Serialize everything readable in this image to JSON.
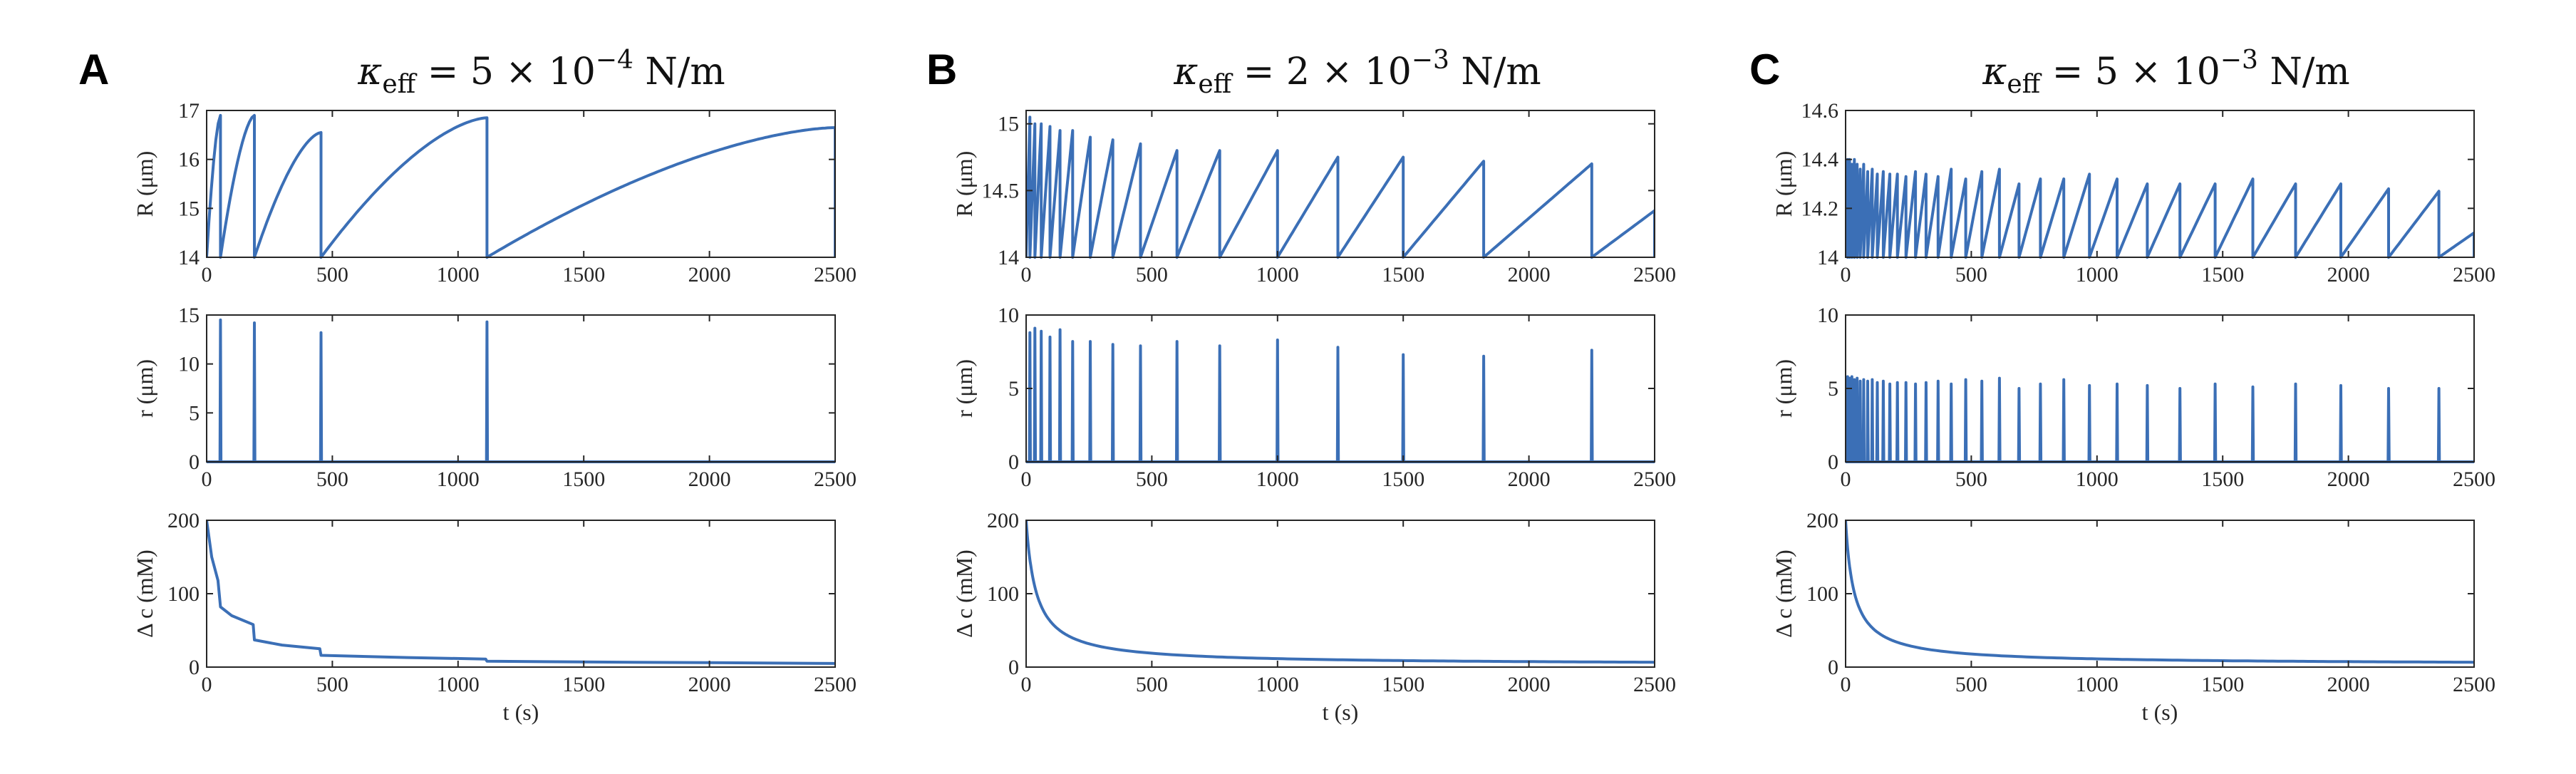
{
  "figure": {
    "panels": [
      {
        "letter": "A",
        "title_prefix": "κ",
        "title_sub": "eff",
        "title_value": " = 5 × 10",
        "title_exp": "−4",
        "title_unit": " N/m"
      },
      {
        "letter": "B",
        "title_prefix": "κ",
        "title_sub": "eff",
        "title_value": " = 2 × 10",
        "title_exp": "−3",
        "title_unit": " N/m"
      },
      {
        "letter": "C",
        "title_prefix": "κ",
        "title_sub": "eff",
        "title_value": " = 5 × 10",
        "title_exp": "−3",
        "title_unit": " N/m"
      }
    ],
    "series_color": "#3b6fb6"
  },
  "chart_data": [
    {
      "panel": "A",
      "row": "R",
      "type": "line",
      "xlabel": "",
      "ylabel": "R (μm)",
      "xlim": [
        0,
        2500
      ],
      "ylim": [
        14,
        17
      ],
      "xticks": [
        0,
        500,
        1000,
        1500,
        2000,
        2500
      ],
      "yticks": [
        14,
        15,
        16,
        17
      ],
      "sawtooth": {
        "base": 14,
        "cycles": [
          [
            0,
            55,
            16.9
          ],
          [
            55,
            190,
            16.9
          ],
          [
            190,
            455,
            16.55
          ],
          [
            455,
            1115,
            16.85
          ],
          [
            1115,
            2500,
            16.65
          ]
        ],
        "shape": 0.6
      }
    },
    {
      "panel": "A",
      "row": "r",
      "type": "line",
      "xlabel": "",
      "ylabel": "r (μm)",
      "xlim": [
        0,
        2500
      ],
      "ylim": [
        0,
        15
      ],
      "xticks": [
        0,
        500,
        1000,
        1500,
        2000,
        2500
      ],
      "yticks": [
        0,
        5,
        10,
        15
      ],
      "spikes": {
        "times": [
          55,
          190,
          455,
          1115
        ],
        "heights": [
          14.5,
          14.2,
          13.2,
          14.3
        ]
      }
    },
    {
      "panel": "A",
      "row": "dc",
      "type": "line",
      "xlabel": "t (s)",
      "ylabel": "Δ c (mM)",
      "xlim": [
        0,
        2500
      ],
      "ylim": [
        0,
        200
      ],
      "xticks": [
        0,
        500,
        1000,
        1500,
        2000,
        2500
      ],
      "yticks": [
        0,
        100,
        200
      ],
      "steps": [
        [
          0,
          200
        ],
        [
          20,
          150
        ],
        [
          45,
          118
        ],
        [
          55,
          82
        ],
        [
          100,
          70
        ],
        [
          185,
          58
        ],
        [
          190,
          37
        ],
        [
          300,
          30
        ],
        [
          450,
          25
        ],
        [
          455,
          16
        ],
        [
          800,
          13
        ],
        [
          1110,
          11
        ],
        [
          1115,
          8
        ],
        [
          1500,
          7
        ],
        [
          2000,
          6
        ],
        [
          2500,
          5
        ]
      ]
    },
    {
      "panel": "B",
      "row": "R",
      "type": "line",
      "xlabel": "",
      "ylabel": "R (μm)",
      "xlim": [
        0,
        2500
      ],
      "ylim": [
        14,
        15.1
      ],
      "xticks": [
        0,
        500,
        1000,
        1500,
        2000,
        2500
      ],
      "yticks": [
        14,
        14.5,
        15
      ],
      "sawtooth": {
        "base": 14,
        "cycles": [
          [
            0,
            15,
            15.05
          ],
          [
            15,
            35,
            15.0
          ],
          [
            35,
            60,
            15.0
          ],
          [
            60,
            95,
            14.98
          ],
          [
            95,
            135,
            14.95
          ],
          [
            135,
            185,
            14.95
          ],
          [
            185,
            255,
            14.9
          ],
          [
            255,
            345,
            14.88
          ],
          [
            345,
            455,
            14.85
          ],
          [
            455,
            600,
            14.8
          ],
          [
            600,
            770,
            14.8
          ],
          [
            770,
            1000,
            14.8
          ],
          [
            1000,
            1240,
            14.75
          ],
          [
            1240,
            1500,
            14.75
          ],
          [
            1500,
            1820,
            14.72
          ],
          [
            1820,
            2250,
            14.7
          ],
          [
            2250,
            2500,
            14.35
          ]
        ],
        "shape": 0.9
      }
    },
    {
      "panel": "B",
      "row": "r",
      "type": "line",
      "xlabel": "",
      "ylabel": "r (μm)",
      "xlim": [
        0,
        2500
      ],
      "ylim": [
        0,
        10
      ],
      "xticks": [
        0,
        500,
        1000,
        1500,
        2000,
        2500
      ],
      "yticks": [
        0,
        5,
        10
      ],
      "spikes": {
        "times": [
          15,
          35,
          60,
          95,
          135,
          185,
          255,
          345,
          455,
          600,
          770,
          1000,
          1240,
          1500,
          1820,
          2250
        ],
        "heights": [
          8.8,
          9.1,
          8.9,
          8.5,
          9.0,
          8.2,
          8.2,
          8.0,
          7.9,
          8.2,
          7.9,
          8.3,
          7.8,
          7.3,
          7.2,
          7.6
        ]
      }
    },
    {
      "panel": "B",
      "row": "dc",
      "type": "line",
      "xlabel": "t (s)",
      "ylabel": "Δ c (mM)",
      "xlim": [
        0,
        2500
      ],
      "ylim": [
        0,
        200
      ],
      "xticks": [
        0,
        500,
        1000,
        1500,
        2000,
        2500
      ],
      "yticks": [
        0,
        100,
        200
      ],
      "decay": {
        "c0": 200,
        "tau": 38,
        "pow": 0.95,
        "floor": 3
      }
    },
    {
      "panel": "C",
      "row": "R",
      "type": "line",
      "xlabel": "",
      "ylabel": "R (μm)",
      "xlim": [
        0,
        2500
      ],
      "ylim": [
        14,
        14.6
      ],
      "xticks": [
        0,
        500,
        1000,
        1500,
        2000,
        2500
      ],
      "yticks": [
        14,
        14.2,
        14.4,
        14.6
      ],
      "sawtooth": {
        "base": 14,
        "cycles": [
          [
            0,
            8,
            14.4
          ],
          [
            8,
            16,
            14.4
          ],
          [
            16,
            25,
            14.38
          ],
          [
            25,
            35,
            14.4
          ],
          [
            35,
            46,
            14.38
          ],
          [
            46,
            58,
            14.36
          ],
          [
            58,
            72,
            14.38
          ],
          [
            72,
            88,
            14.35
          ],
          [
            88,
            106,
            14.36
          ],
          [
            106,
            126,
            14.34
          ],
          [
            126,
            150,
            14.35
          ],
          [
            150,
            176,
            14.34
          ],
          [
            176,
            206,
            14.34
          ],
          [
            206,
            240,
            14.33
          ],
          [
            240,
            278,
            14.35
          ],
          [
            278,
            320,
            14.34
          ],
          [
            320,
            368,
            14.33
          ],
          [
            368,
            420,
            14.36
          ],
          [
            420,
            478,
            14.32
          ],
          [
            478,
            542,
            14.35
          ],
          [
            542,
            612,
            14.36
          ],
          [
            612,
            690,
            14.3
          ],
          [
            690,
            775,
            14.32
          ],
          [
            775,
            868,
            14.32
          ],
          [
            868,
            970,
            14.34
          ],
          [
            970,
            1080,
            14.32
          ],
          [
            1080,
            1200,
            14.3
          ],
          [
            1200,
            1330,
            14.3
          ],
          [
            1330,
            1470,
            14.3
          ],
          [
            1470,
            1620,
            14.32
          ],
          [
            1620,
            1790,
            14.3
          ],
          [
            1790,
            1970,
            14.3
          ],
          [
            1970,
            2160,
            14.28
          ],
          [
            2160,
            2360,
            14.27
          ],
          [
            2360,
            2500,
            14.1
          ]
        ],
        "shape": 0.95
      }
    },
    {
      "panel": "C",
      "row": "r",
      "type": "line",
      "xlabel": "",
      "ylabel": "r (μm)",
      "xlim": [
        0,
        2500
      ],
      "ylim": [
        0,
        10
      ],
      "xticks": [
        0,
        500,
        1000,
        1500,
        2000,
        2500
      ],
      "yticks": [
        0,
        5,
        10
      ],
      "spikes": {
        "times": [
          8,
          16,
          25,
          35,
          46,
          58,
          72,
          88,
          106,
          126,
          150,
          176,
          206,
          240,
          278,
          320,
          368,
          420,
          478,
          542,
          612,
          690,
          775,
          868,
          970,
          1080,
          1200,
          1330,
          1470,
          1620,
          1790,
          1970,
          2160,
          2360
        ],
        "heights": [
          5.8,
          5.7,
          5.8,
          5.6,
          5.7,
          5.5,
          5.6,
          5.5,
          5.6,
          5.4,
          5.5,
          5.3,
          5.4,
          5.4,
          5.3,
          5.4,
          5.5,
          5.3,
          5.6,
          5.5,
          5.7,
          5.0,
          5.3,
          5.6,
          5.2,
          5.3,
          5.2,
          5.0,
          5.3,
          5.1,
          5.3,
          5.2,
          5.0,
          5.0
        ]
      }
    },
    {
      "panel": "C",
      "row": "dc",
      "type": "line",
      "xlabel": "t (s)",
      "ylabel": "Δ c (mM)",
      "xlim": [
        0,
        2500
      ],
      "ylim": [
        0,
        200
      ],
      "xticks": [
        0,
        500,
        1000,
        1500,
        2000,
        2500
      ],
      "yticks": [
        0,
        100,
        200
      ],
      "decay": {
        "c0": 200,
        "tau": 30,
        "pow": 0.9,
        "floor": 3
      }
    }
  ]
}
